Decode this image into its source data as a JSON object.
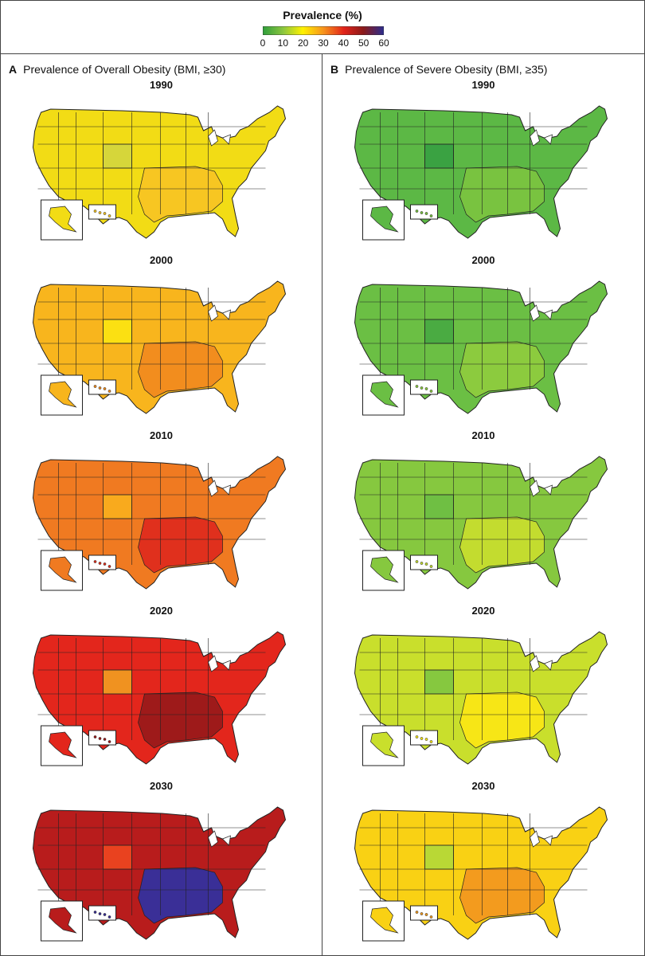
{
  "legend": {
    "title": "Prevalence (%)",
    "ticks": [
      "0",
      "10",
      "20",
      "30",
      "40",
      "50",
      "60"
    ],
    "colors": [
      "#2e9e3c",
      "#8cc63f",
      "#fff200",
      "#f7941d",
      "#e2231a",
      "#8b1a1a",
      "#2b2d8f"
    ]
  },
  "panels": [
    {
      "letter": "A",
      "title": "Prevalence of Overall Obesity (BMI, ≥30)",
      "maps": [
        {
          "year": "1990",
          "base": "#f2dc15",
          "accent": "#d6d63a",
          "south": "#f7c622"
        },
        {
          "year": "2000",
          "base": "#f8b51d",
          "accent": "#fbe012",
          "south": "#f28d1e"
        },
        {
          "year": "2010",
          "base": "#f07a21",
          "accent": "#f9aa1d",
          "south": "#e0301d"
        },
        {
          "year": "2020",
          "base": "#e3261c",
          "accent": "#f09220",
          "south": "#9e1a1a"
        },
        {
          "year": "2030",
          "base": "#b81c1c",
          "accent": "#e9421f",
          "south": "#3a2f97"
        }
      ]
    },
    {
      "letter": "B",
      "title": "Prevalence of Severe Obesity (BMI, ≥35)",
      "maps": [
        {
          "year": "1990",
          "base": "#5cb845",
          "accent": "#3aa242",
          "south": "#79c340"
        },
        {
          "year": "2000",
          "base": "#6bbf44",
          "accent": "#4aab42",
          "south": "#8ccb3e"
        },
        {
          "year": "2010",
          "base": "#86c83f",
          "accent": "#6fbf43",
          "south": "#c3dc2f"
        },
        {
          "year": "2020",
          "base": "#c9df2c",
          "accent": "#86c83f",
          "south": "#f7e616"
        },
        {
          "year": "2030",
          "base": "#f9d114",
          "accent": "#b9d835",
          "south": "#f39b1e"
        }
      ]
    }
  ]
}
